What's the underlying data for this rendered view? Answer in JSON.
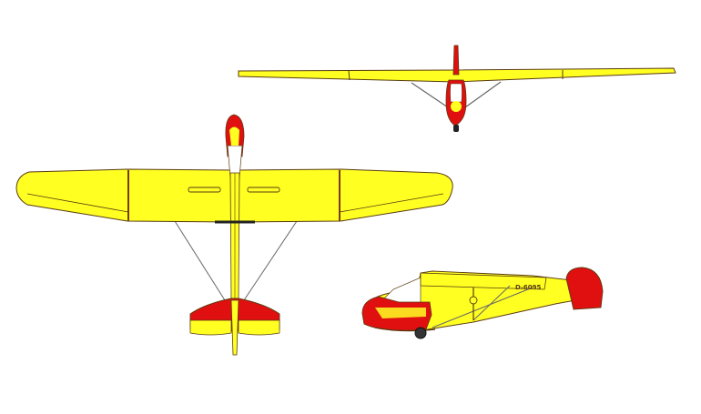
{
  "drawing": {
    "views": [
      "front-view",
      "top-view",
      "side-view"
    ],
    "registration": "D-6095"
  },
  "colors": {
    "body": "#ffff22",
    "accent": "#e01010",
    "outline": "#5a3a10",
    "strut": "#666666",
    "canopy": "#ffffff"
  }
}
